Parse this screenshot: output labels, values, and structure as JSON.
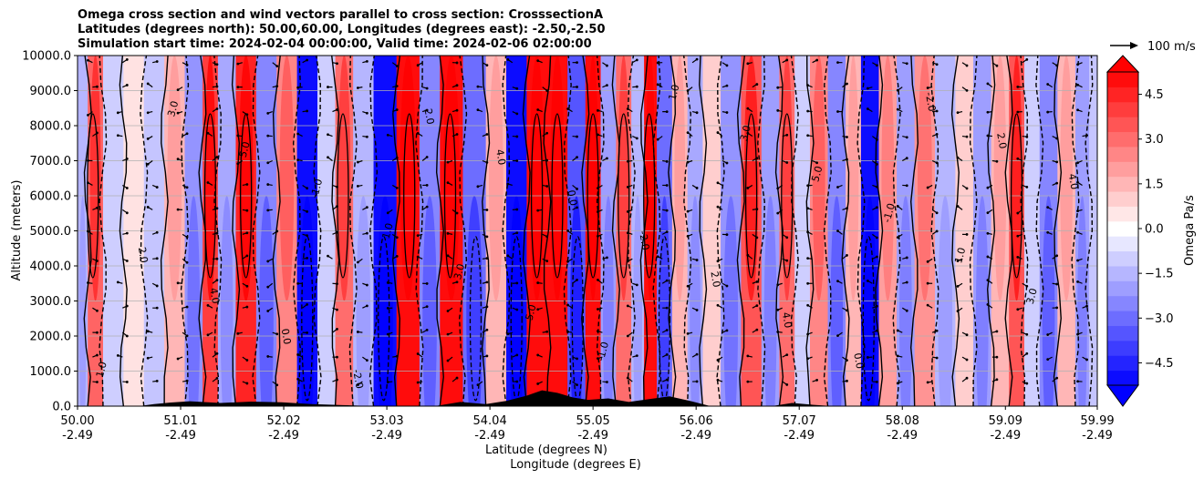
{
  "chart_data": {
    "type": "heatmap",
    "title_lines": [
      "Omega cross section and wind vectors parallel to cross section: CrosssectionA",
      "Latitudes (degrees north): 50.00,60.00, Longitudes (degrees east): -2.50,-2.50",
      "Simulation start time: 2024-02-04 00:00:00, Valid time: 2024-02-06 02:00:00"
    ],
    "xlabel_lines": [
      "Latitude (degrees N)",
      "Longitude (degrees E)"
    ],
    "ylabel": "Altitude (meters)",
    "x_ticks": [
      {
        "lat": "50.00",
        "lon": "-2.49"
      },
      {
        "lat": "51.01",
        "lon": "-2.49"
      },
      {
        "lat": "52.02",
        "lon": "-2.49"
      },
      {
        "lat": "53.03",
        "lon": "-2.49"
      },
      {
        "lat": "54.04",
        "lon": "-2.49"
      },
      {
        "lat": "55.05",
        "lon": "-2.49"
      },
      {
        "lat": "56.06",
        "lon": "-2.49"
      },
      {
        "lat": "57.07",
        "lon": "-2.49"
      },
      {
        "lat": "58.08",
        "lon": "-2.49"
      },
      {
        "lat": "59.09",
        "lon": "-2.49"
      },
      {
        "lat": "59.99",
        "lon": "-2.49"
      }
    ],
    "xlim": [
      50.0,
      59.99
    ],
    "y_ticks": [
      "0.0",
      "1000.0",
      "2000.0",
      "3000.0",
      "4000.0",
      "5000.0",
      "6000.0",
      "7000.0",
      "8000.0",
      "9000.0",
      "10000.0"
    ],
    "ylim": [
      0,
      10000
    ],
    "grid": true,
    "colorbar": {
      "label": "Omega Pa/s",
      "ticks": [
        "4.5",
        "3.0",
        "1.5",
        "0.0",
        "−1.5",
        "−3.0",
        "−4.5"
      ],
      "range": [
        -5.25,
        5.25
      ],
      "extend": "both",
      "colormap": "bwr"
    },
    "quiver_key": {
      "label": "100 m/s"
    },
    "contour_labels": [
      "1.0",
      "2.0",
      "3.0",
      "4.0",
      "5.0",
      "0.0",
      "-1.0",
      "-2.0"
    ],
    "bands": [
      {
        "lat": 50.05,
        "value": -1.5
      },
      {
        "lat": 50.15,
        "value": 3.2
      },
      {
        "lat": 50.35,
        "value": -1.0
      },
      {
        "lat": 50.55,
        "value": 0.6
      },
      {
        "lat": 50.75,
        "value": -1.2
      },
      {
        "lat": 50.95,
        "value": 1.5
      },
      {
        "lat": 51.15,
        "value": -2.2
      },
      {
        "lat": 51.3,
        "value": 4.0
      },
      {
        "lat": 51.45,
        "value": -1.8
      },
      {
        "lat": 51.65,
        "value": 4.5
      },
      {
        "lat": 51.85,
        "value": -2.5
      },
      {
        "lat": 52.05,
        "value": 2.5
      },
      {
        "lat": 52.25,
        "value": -5.0
      },
      {
        "lat": 52.45,
        "value": -1.0
      },
      {
        "lat": 52.6,
        "value": 3.0
      },
      {
        "lat": 52.8,
        "value": -1.5
      },
      {
        "lat": 53.0,
        "value": -5.0
      },
      {
        "lat": 53.25,
        "value": 5.0
      },
      {
        "lat": 53.45,
        "value": -2.5
      },
      {
        "lat": 53.65,
        "value": 5.0
      },
      {
        "lat": 53.9,
        "value": -3.0
      },
      {
        "lat": 54.1,
        "value": 1.5
      },
      {
        "lat": 54.3,
        "value": -5.0
      },
      {
        "lat": 54.5,
        "value": 5.0
      },
      {
        "lat": 54.7,
        "value": 5.0
      },
      {
        "lat": 54.9,
        "value": -3.5
      },
      {
        "lat": 55.05,
        "value": 5.0
      },
      {
        "lat": 55.2,
        "value": -2.0
      },
      {
        "lat": 55.35,
        "value": 3.0
      },
      {
        "lat": 55.5,
        "value": -1.5
      },
      {
        "lat": 55.6,
        "value": 5.0
      },
      {
        "lat": 55.75,
        "value": -3.0
      },
      {
        "lat": 55.9,
        "value": 1.5
      },
      {
        "lat": 56.05,
        "value": -1.8
      },
      {
        "lat": 56.2,
        "value": 1.0
      },
      {
        "lat": 56.4,
        "value": -2.2
      },
      {
        "lat": 56.6,
        "value": 3.5
      },
      {
        "lat": 56.8,
        "value": -2.0
      },
      {
        "lat": 56.95,
        "value": 3.0
      },
      {
        "lat": 57.1,
        "value": -1.0
      },
      {
        "lat": 57.25,
        "value": 2.5
      },
      {
        "lat": 57.45,
        "value": -2.5
      },
      {
        "lat": 57.6,
        "value": 1.5
      },
      {
        "lat": 57.75,
        "value": -5.0
      },
      {
        "lat": 57.95,
        "value": 2.0
      },
      {
        "lat": 58.1,
        "value": -2.0
      },
      {
        "lat": 58.3,
        "value": 2.2
      },
      {
        "lat": 58.5,
        "value": -1.5
      },
      {
        "lat": 58.7,
        "value": 1.0
      },
      {
        "lat": 58.85,
        "value": -2.0
      },
      {
        "lat": 59.05,
        "value": 1.5
      },
      {
        "lat": 59.2,
        "value": 3.5
      },
      {
        "lat": 59.35,
        "value": -1.0
      },
      {
        "lat": 59.5,
        "value": -2.5
      },
      {
        "lat": 59.7,
        "value": 1.5
      },
      {
        "lat": 59.85,
        "value": -2.0
      },
      {
        "lat": 59.97,
        "value": -1.2
      }
    ],
    "terrain": [
      {
        "lat": 50.0,
        "alt": 0
      },
      {
        "lat": 50.6,
        "alt": 0
      },
      {
        "lat": 50.75,
        "alt": 60
      },
      {
        "lat": 50.9,
        "alt": 100
      },
      {
        "lat": 51.1,
        "alt": 140
      },
      {
        "lat": 51.4,
        "alt": 90
      },
      {
        "lat": 51.7,
        "alt": 130
      },
      {
        "lat": 52.0,
        "alt": 110
      },
      {
        "lat": 52.3,
        "alt": 60
      },
      {
        "lat": 52.6,
        "alt": 30
      },
      {
        "lat": 52.9,
        "alt": 0
      },
      {
        "lat": 53.5,
        "alt": 0
      },
      {
        "lat": 53.75,
        "alt": 120
      },
      {
        "lat": 54.0,
        "alt": 60
      },
      {
        "lat": 54.2,
        "alt": 150
      },
      {
        "lat": 54.4,
        "alt": 300
      },
      {
        "lat": 54.55,
        "alt": 450
      },
      {
        "lat": 54.7,
        "alt": 380
      },
      {
        "lat": 54.85,
        "alt": 250
      },
      {
        "lat": 55.0,
        "alt": 180
      },
      {
        "lat": 55.2,
        "alt": 220
      },
      {
        "lat": 55.4,
        "alt": 120
      },
      {
        "lat": 55.6,
        "alt": 200
      },
      {
        "lat": 55.8,
        "alt": 280
      },
      {
        "lat": 56.0,
        "alt": 150
      },
      {
        "lat": 56.2,
        "alt": 0
      },
      {
        "lat": 56.8,
        "alt": 0
      },
      {
        "lat": 57.0,
        "alt": 90
      },
      {
        "lat": 57.2,
        "alt": 40
      },
      {
        "lat": 57.4,
        "alt": 0
      },
      {
        "lat": 59.99,
        "alt": 0
      }
    ]
  }
}
